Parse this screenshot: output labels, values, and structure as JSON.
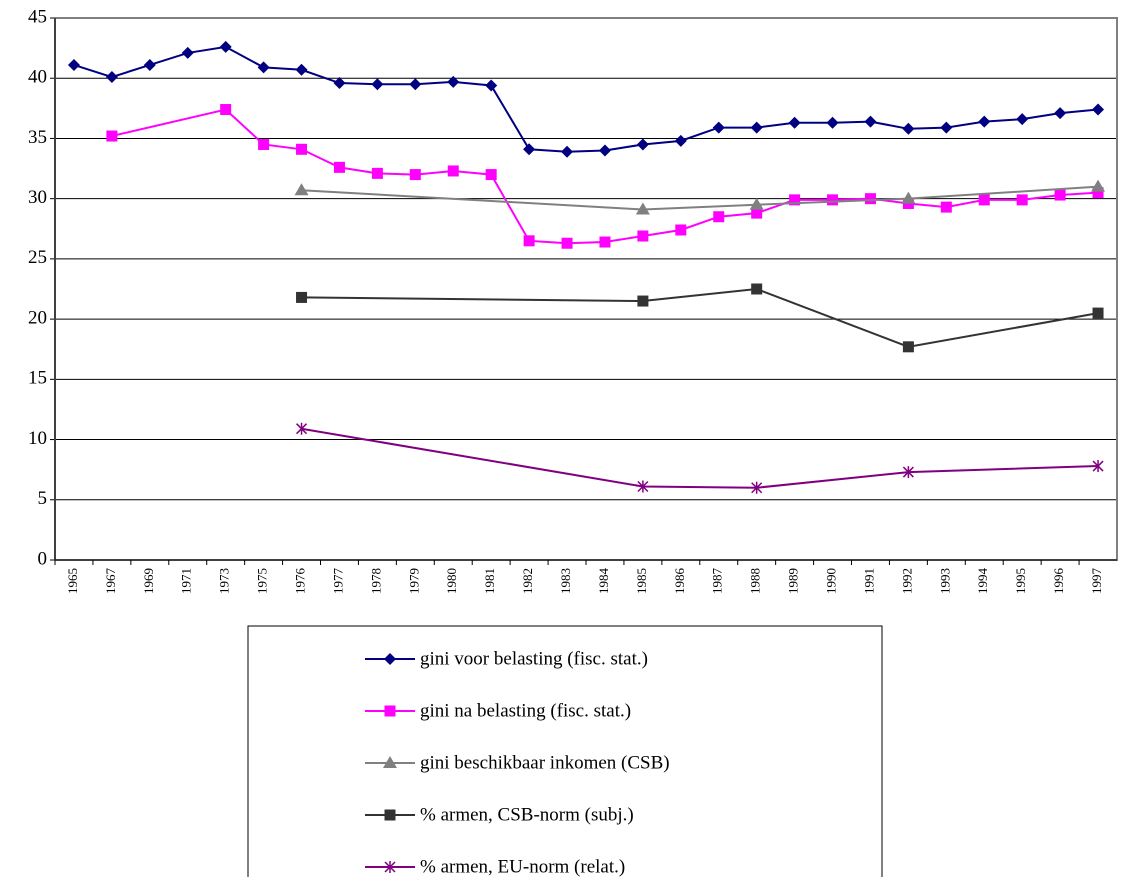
{
  "chart_data": {
    "type": "line",
    "categories": [
      "1965",
      "1967",
      "1969",
      "1971",
      "1973",
      "1975",
      "1976",
      "1977",
      "1978",
      "1979",
      "1980",
      "1981",
      "1982",
      "1983",
      "1984",
      "1985",
      "1986",
      "1987",
      "1988",
      "1989",
      "1990",
      "1991",
      "1992",
      "1993",
      "1994",
      "1995",
      "1996",
      "1997"
    ],
    "ylim": [
      0,
      45
    ],
    "yticks": [
      0,
      5,
      10,
      15,
      20,
      25,
      30,
      35,
      40,
      45
    ],
    "grid": true,
    "connect_gaps": true,
    "legend": "bottom",
    "series": [
      {
        "name": "gini voor belasting (fisc. stat.)",
        "color": "#000080",
        "marker": "diamond",
        "values": [
          41.1,
          40.1,
          41.1,
          42.1,
          42.6,
          40.9,
          40.7,
          39.6,
          39.5,
          39.5,
          39.7,
          39.4,
          34.1,
          33.9,
          34.0,
          34.5,
          34.8,
          35.9,
          35.9,
          36.3,
          36.3,
          36.4,
          35.8,
          35.9,
          36.4,
          36.6,
          37.1,
          37.4
        ]
      },
      {
        "name": "gini na belasting (fisc. stat.)",
        "color": "#ff00ff",
        "marker": "square",
        "values": [
          null,
          35.2,
          null,
          null,
          37.4,
          34.5,
          34.1,
          32.6,
          32.1,
          32.0,
          32.3,
          32.0,
          26.5,
          26.3,
          26.4,
          26.9,
          27.4,
          28.5,
          28.8,
          29.9,
          29.9,
          30.0,
          29.6,
          29.3,
          29.9,
          29.9,
          30.3,
          30.5
        ]
      },
      {
        "name": "gini beschikbaar inkomen (CSB)",
        "color": "#808080",
        "marker": "triangle",
        "values": [
          null,
          null,
          null,
          null,
          null,
          null,
          30.7,
          null,
          null,
          null,
          null,
          null,
          null,
          null,
          null,
          29.1,
          null,
          null,
          29.5,
          null,
          null,
          null,
          30.0,
          null,
          null,
          null,
          null,
          31.0
        ]
      },
      {
        "name": "% armen, CSB-norm (subj.)",
        "color": "#333333",
        "marker": "square",
        "values": [
          null,
          null,
          null,
          null,
          null,
          null,
          21.8,
          null,
          null,
          null,
          null,
          null,
          null,
          null,
          null,
          21.5,
          null,
          null,
          22.5,
          null,
          null,
          null,
          17.7,
          null,
          null,
          null,
          null,
          20.5
        ]
      },
      {
        "name": "% armen, EU-norm (relat.)",
        "color": "#800080",
        "marker": "star",
        "values": [
          null,
          null,
          null,
          null,
          null,
          null,
          10.9,
          null,
          null,
          null,
          null,
          null,
          null,
          null,
          null,
          6.1,
          null,
          null,
          6.0,
          null,
          null,
          null,
          7.3,
          null,
          null,
          null,
          null,
          7.8
        ]
      }
    ]
  }
}
